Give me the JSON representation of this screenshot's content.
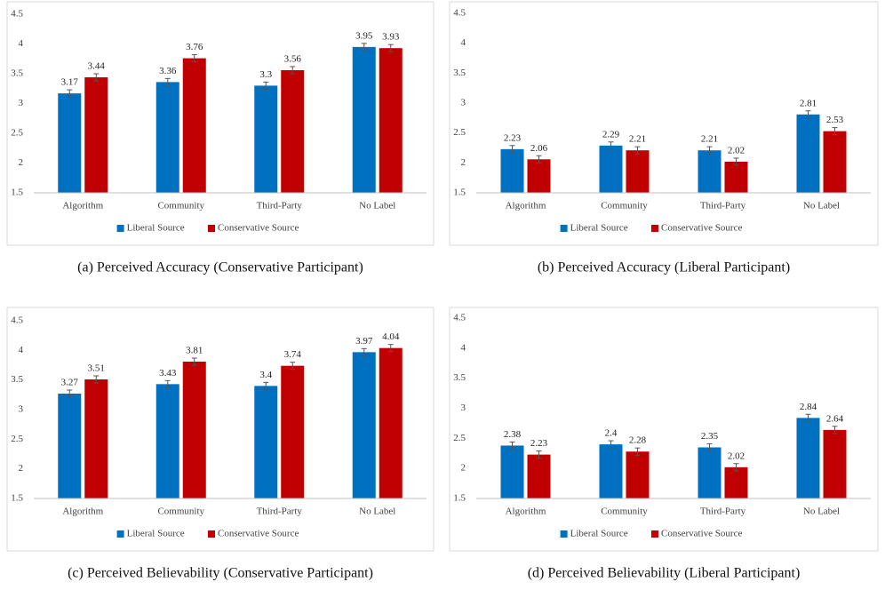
{
  "chart_data": [
    {
      "type": "bar",
      "caption": "(a)  Perceived Accuracy (Conservative Participant)",
      "categories": [
        "Algorithm",
        "Community",
        "Third-Party",
        "No Label"
      ],
      "series": [
        {
          "name": "Liberal Source",
          "color": "#0070c0",
          "values": [
            3.17,
            3.36,
            3.3,
            3.95
          ],
          "errors": [
            0.06,
            0.06,
            0.06,
            0.06
          ]
        },
        {
          "name": "Conservative Source",
          "color": "#c00000",
          "values": [
            3.44,
            3.76,
            3.56,
            3.93
          ],
          "errors": [
            0.06,
            0.06,
            0.06,
            0.06
          ]
        }
      ],
      "ylim": [
        1.5,
        4.5
      ],
      "yticks": [
        1.5,
        2,
        2.5,
        3,
        3.5,
        4,
        4.5
      ],
      "grid": false,
      "legend": "bottom"
    },
    {
      "type": "bar",
      "caption": "(b)  Perceived Accuracy (Liberal Participant)",
      "categories": [
        "Algorithm",
        "Community",
        "Third-Party",
        "No Label"
      ],
      "series": [
        {
          "name": "Liberal Source",
          "color": "#0070c0",
          "values": [
            2.23,
            2.29,
            2.21,
            2.81
          ],
          "errors": [
            0.06,
            0.06,
            0.06,
            0.06
          ]
        },
        {
          "name": "Conservative Source",
          "color": "#c00000",
          "values": [
            2.06,
            2.21,
            2.02,
            2.53
          ],
          "errors": [
            0.06,
            0.06,
            0.06,
            0.06
          ]
        }
      ],
      "ylim": [
        1.5,
        4.5
      ],
      "yticks": [
        1.5,
        2,
        2.5,
        3,
        3.5,
        4,
        4.5
      ],
      "grid": false,
      "legend": "bottom"
    },
    {
      "type": "bar",
      "caption": "(c)  Perceived Believability (Conservative Participant)",
      "categories": [
        "Algorithm",
        "Community",
        "Third-Party",
        "No Label"
      ],
      "series": [
        {
          "name": "Liberal Source",
          "color": "#0070c0",
          "values": [
            3.27,
            3.43,
            3.4,
            3.97
          ],
          "errors": [
            0.06,
            0.06,
            0.06,
            0.06
          ]
        },
        {
          "name": "Conservative Source",
          "color": "#c00000",
          "values": [
            3.51,
            3.81,
            3.74,
            4.04
          ],
          "errors": [
            0.06,
            0.06,
            0.06,
            0.06
          ]
        }
      ],
      "ylim": [
        1.5,
        4.5
      ],
      "yticks": [
        1.5,
        2,
        2.5,
        3,
        3.5,
        4,
        4.5
      ],
      "grid": false,
      "legend": "bottom"
    },
    {
      "type": "bar",
      "caption": "(d)  Perceived Believability (Liberal Participant)",
      "categories": [
        "Algorithm",
        "Community",
        "Third-Party",
        "No Label"
      ],
      "series": [
        {
          "name": "Liberal Source",
          "color": "#0070c0",
          "values": [
            2.38,
            2.4,
            2.35,
            2.84
          ],
          "errors": [
            0.06,
            0.06,
            0.06,
            0.06
          ]
        },
        {
          "name": "Conservative Source",
          "color": "#c00000",
          "values": [
            2.23,
            2.28,
            2.02,
            2.64
          ],
          "errors": [
            0.06,
            0.06,
            0.06,
            0.06
          ]
        }
      ],
      "ylim": [
        1.5,
        4.5
      ],
      "yticks": [
        1.5,
        2,
        2.5,
        3,
        3.5,
        4,
        4.5
      ],
      "grid": false,
      "legend": "bottom"
    }
  ]
}
